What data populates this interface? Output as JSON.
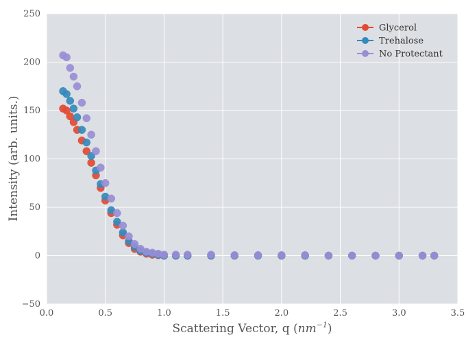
{
  "chart_data": {
    "type": "scatter",
    "xlabel": "Scattering Vector, q (",
    "xlabel_unit_base": "nm",
    "xlabel_unit_exp": "−1",
    "xlabel_close": ")",
    "ylabel": "Intensity (arb. units.)",
    "xlim": [
      0.0,
      3.5
    ],
    "ylim": [
      -50,
      250
    ],
    "xticks": [
      "0.0",
      "0.5",
      "1.0",
      "1.5",
      "2.0",
      "2.5",
      "3.0",
      "3.5"
    ],
    "yticks": [
      "250",
      "200",
      "150",
      "100",
      "50",
      "0",
      "−50"
    ],
    "grid": true,
    "legend_position": "top-right",
    "background": "#dcdfe3",
    "series": [
      {
        "name": "Glycerol",
        "color": "#e24a33",
        "x": [
          0.14,
          0.17,
          0.2,
          0.23,
          0.26,
          0.3,
          0.34,
          0.38,
          0.42,
          0.46,
          0.5,
          0.55,
          0.6,
          0.65,
          0.7,
          0.75,
          0.8,
          0.85,
          0.9,
          0.95,
          1.0,
          1.1,
          1.2,
          1.4,
          1.6,
          1.8,
          2.0,
          2.2,
          2.4,
          2.6,
          2.8,
          3.0,
          3.2,
          3.3
        ],
        "y": [
          152,
          150,
          144,
          138,
          130,
          119,
          108,
          96,
          83,
          70,
          57,
          44,
          32,
          21,
          13,
          7,
          4,
          2,
          1,
          0.5,
          0,
          0,
          0,
          0,
          0,
          0,
          0,
          0,
          0,
          0,
          0,
          0,
          0,
          0
        ]
      },
      {
        "name": "Trehalose",
        "color": "#348abd",
        "x": [
          0.14,
          0.17,
          0.2,
          0.23,
          0.26,
          0.3,
          0.34,
          0.38,
          0.42,
          0.46,
          0.5,
          0.55,
          0.6,
          0.65,
          0.7,
          0.75,
          0.8,
          0.85,
          0.9,
          0.95,
          1.0,
          1.1,
          1.2,
          1.4,
          1.6,
          1.8,
          2.0,
          2.2,
          2.4,
          2.6,
          2.8,
          3.0,
          3.2,
          3.3
        ],
        "y": [
          170,
          167,
          160,
          152,
          143,
          130,
          117,
          103,
          88,
          74,
          61,
          47,
          35,
          24,
          15,
          9,
          5,
          3,
          2,
          1,
          0,
          0,
          0,
          0,
          0,
          0,
          0,
          0,
          0,
          0,
          0,
          0,
          0,
          0
        ]
      },
      {
        "name": "No Protectant",
        "color": "#988ed5",
        "x": [
          0.14,
          0.17,
          0.2,
          0.23,
          0.26,
          0.3,
          0.34,
          0.38,
          0.42,
          0.46,
          0.5,
          0.55,
          0.6,
          0.65,
          0.7,
          0.75,
          0.8,
          0.85,
          0.9,
          0.95,
          1.0,
          1.1,
          1.2,
          1.4,
          1.6,
          1.8,
          2.0,
          2.2,
          2.4,
          2.6,
          2.8,
          3.0,
          3.2,
          3.3
        ],
        "y": [
          207,
          205,
          194,
          185,
          175,
          158,
          142,
          125,
          108,
          91,
          75,
          59,
          44,
          31,
          20,
          12,
          7,
          4,
          3,
          2,
          1,
          1,
          1,
          1,
          0.5,
          0.5,
          0.5,
          0.5,
          0,
          0,
          0,
          0,
          0,
          0
        ]
      }
    ]
  }
}
